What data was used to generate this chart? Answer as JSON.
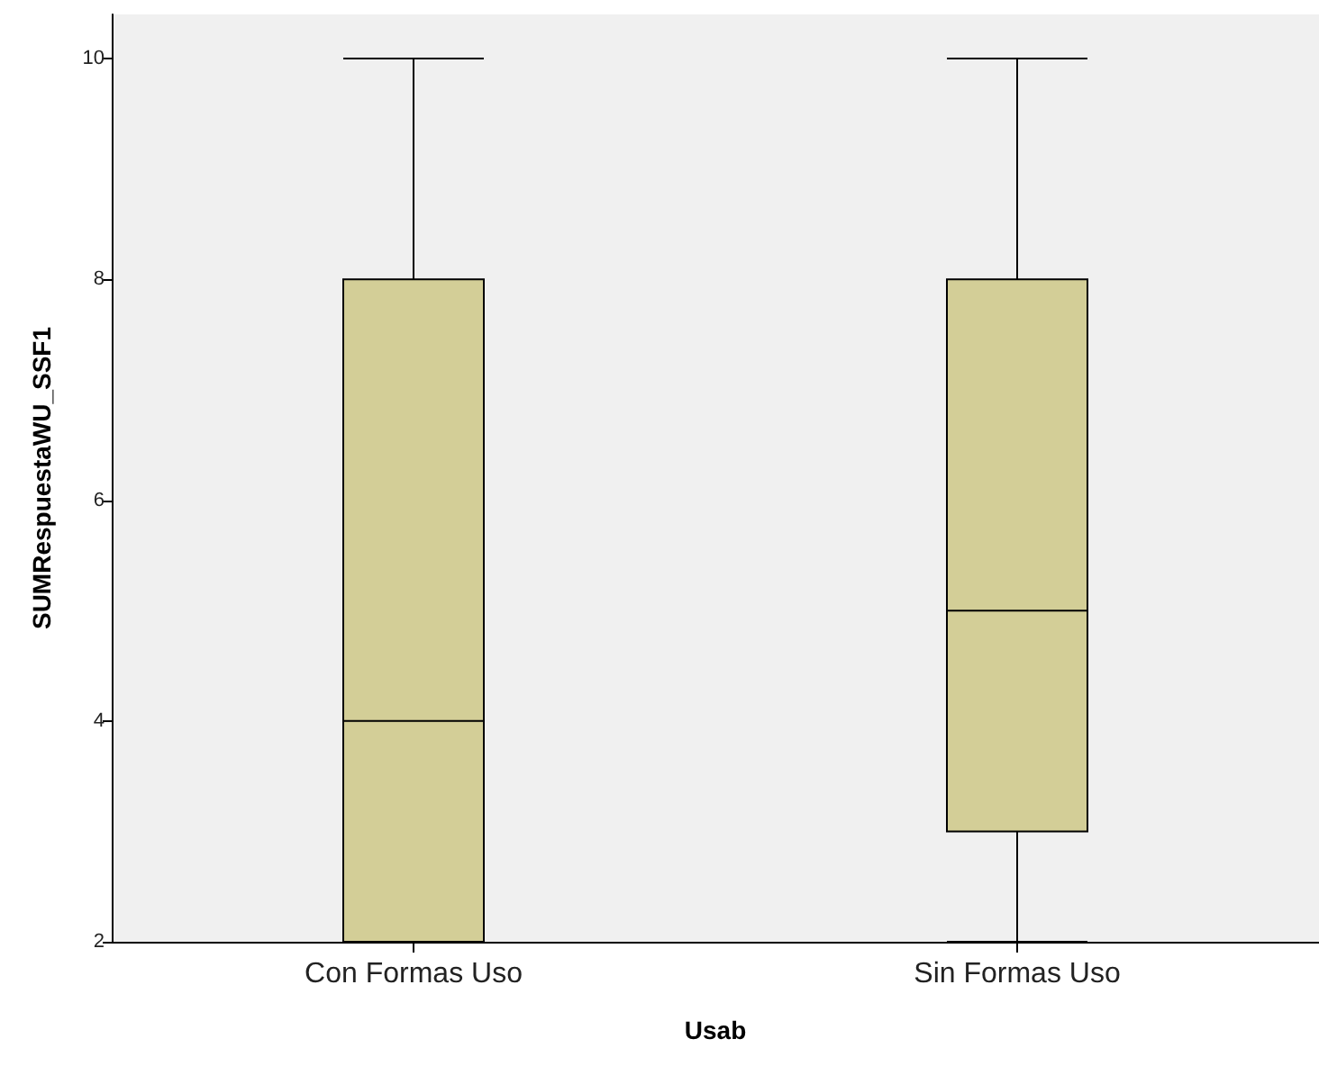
{
  "chart_data": {
    "type": "box",
    "xlabel": "Usab",
    "ylabel": "SUMRespuestaWU_SSF1",
    "categories": [
      "Con Formas Uso",
      "Sin Formas Uso"
    ],
    "series": [
      {
        "color": "#d3ce97",
        "boxes": [
          {
            "low": 2,
            "q1": 2,
            "median": 4,
            "q3": 8,
            "high": 10
          },
          {
            "low": 2,
            "q1": 3,
            "median": 5,
            "q3": 8,
            "high": 10
          }
        ]
      }
    ],
    "ylim": [
      2,
      10.4
    ],
    "yticks": [
      2,
      4,
      6,
      8,
      10
    ]
  }
}
